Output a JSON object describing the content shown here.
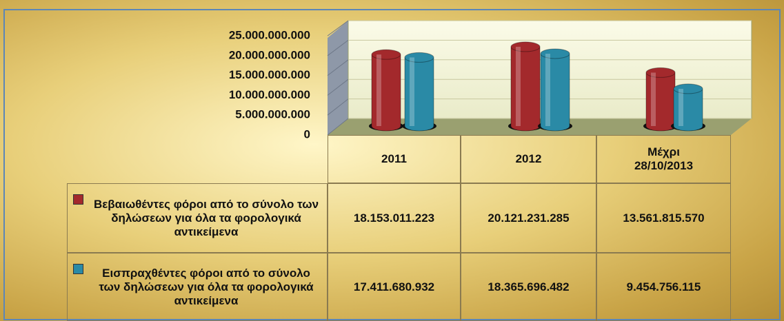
{
  "chart_data": {
    "type": "bar",
    "categories": [
      "2011",
      "2012",
      "Μέχρι 28/10/2013"
    ],
    "series": [
      {
        "name": "Βεβαιωθέντες φόροι από το σύνολο των δηλώσεων για όλα τα φορολογικά αντικείμενα",
        "color": "#a3292c",
        "values": [
          18153011223,
          20121231285,
          13561815570
        ],
        "value_labels": [
          "18.153.011.223",
          "20.121.231.285",
          "13.561.815.570"
        ]
      },
      {
        "name": "Εισπραχθέντες φόροι από το σύνολο των δηλώσεων για όλα τα φορολογικά αντικείμενα",
        "color": "#2a8aa6",
        "values": [
          17411680932,
          18365696482,
          9454756115
        ],
        "value_labels": [
          "17.411.680.932",
          "18.365.696.482",
          "9.454.756.115"
        ]
      }
    ],
    "ylim": [
      0,
      25000000000
    ],
    "yticks": [
      0,
      {
        "value": 5000000000,
        "label": "5.000.000.000"
      },
      {
        "value": 10000000000,
        "label": "10.000.000.000"
      },
      {
        "value": 15000000000,
        "label": "15.000.000.000"
      },
      {
        "value": 20000000000,
        "label": "20.000.000.000"
      },
      {
        "value": 25000000000,
        "label": "25.000.000.000"
      }
    ],
    "grid": true
  }
}
